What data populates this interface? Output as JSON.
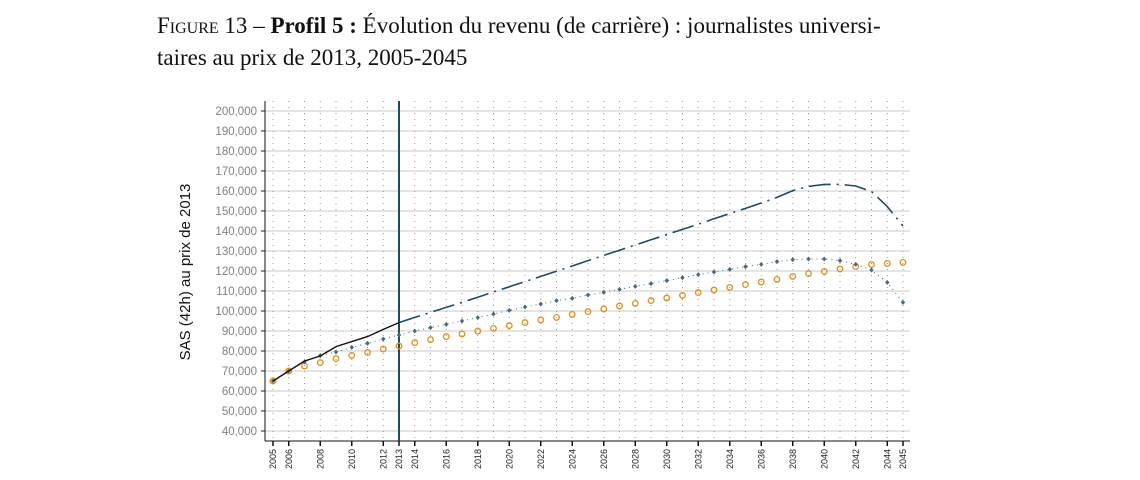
{
  "caption": {
    "figure_label": "Figure 13",
    "dash": " – ",
    "bold": "Profil 5 :",
    "text": " Évolution du revenu (de carrière) : journalistes universi-",
    "line2": "taires au prix de 2013, 2005-2045"
  },
  "chart_data": {
    "type": "line",
    "title": "",
    "xlabel": "",
    "ylabel": "SAS (42h) au prix de 2013",
    "xlim": [
      2005,
      2045
    ],
    "ylim": [
      35000,
      205000
    ],
    "yticks": [
      40000,
      50000,
      60000,
      70000,
      80000,
      90000,
      100000,
      110000,
      120000,
      130000,
      140000,
      150000,
      160000,
      170000,
      180000,
      190000,
      200000
    ],
    "ytick_labels": [
      "40,000",
      "50,000",
      "60,000",
      "70,000",
      "80,000",
      "90,000",
      "100,000",
      "110,000",
      "120,000",
      "130,000",
      "140,000",
      "150,000",
      "160,000",
      "170,000",
      "180,000",
      "190,000",
      "200,000"
    ],
    "xticks": [
      2005,
      2006,
      2008,
      2010,
      2012,
      2013,
      2014,
      2016,
      2018,
      2020,
      2022,
      2024,
      2026,
      2028,
      2030,
      2032,
      2034,
      2036,
      2038,
      2040,
      2042,
      2044,
      2045
    ],
    "grid": {
      "horizontal": "solid",
      "vertical": "dotted, every year"
    },
    "vertical_marker": 2013,
    "legend": "none",
    "series": [
      {
        "style": "solid line",
        "color": "#111111",
        "x": [
          2005,
          2006,
          2007,
          2008,
          2009,
          2010,
          2011,
          2012,
          2013
        ],
        "y": [
          65000,
          70000,
          75000,
          77500,
          82200,
          84700,
          87200,
          90800,
          94200
        ]
      },
      {
        "style": "long-dash-dot line",
        "color": "#1f4a63",
        "x": [
          2013,
          2014,
          2015,
          2016,
          2017,
          2018,
          2019,
          2020,
          2021,
          2022,
          2023,
          2024,
          2025,
          2026,
          2027,
          2028,
          2029,
          2030,
          2031,
          2032,
          2033,
          2034,
          2035,
          2036,
          2037,
          2038,
          2039,
          2040,
          2041,
          2042,
          2043,
          2044,
          2045
        ],
        "y": [
          94200,
          96800,
          99300,
          101800,
          104300,
          106900,
          109500,
          112100,
          114700,
          117300,
          119900,
          122500,
          125200,
          127800,
          130400,
          133000,
          135600,
          138200,
          140800,
          143400,
          146100,
          148700,
          151300,
          154000,
          156800,
          160200,
          162300,
          163300,
          163300,
          162500,
          159700,
          152200,
          142500
        ]
      },
      {
        "style": "dotted line with diamond markers",
        "color": "#4a6a7f",
        "x": [
          2005,
          2006,
          2007,
          2008,
          2009,
          2010,
          2011,
          2012,
          2013,
          2014,
          2015,
          2016,
          2017,
          2018,
          2019,
          2020,
          2021,
          2022,
          2023,
          2024,
          2025,
          2026,
          2027,
          2028,
          2029,
          2030,
          2031,
          2032,
          2033,
          2034,
          2035,
          2036,
          2037,
          2038,
          2039,
          2040,
          2041,
          2042,
          2043,
          2044,
          2045
        ],
        "y": [
          65000,
          70000,
          74500,
          77700,
          79500,
          81800,
          83800,
          86000,
          88000,
          90000,
          91700,
          93300,
          95000,
          96700,
          98500,
          100300,
          102000,
          103500,
          105200,
          106300,
          108000,
          109300,
          110800,
          112300,
          113700,
          115200,
          116700,
          118200,
          119500,
          120800,
          122200,
          123300,
          124700,
          125700,
          126000,
          126000,
          125200,
          123300,
          120500,
          114300,
          104300
        ]
      },
      {
        "style": "hollow circle markers",
        "color": "#e0901c",
        "x": [
          2005,
          2006,
          2007,
          2008,
          2009,
          2010,
          2011,
          2012,
          2013,
          2014,
          2015,
          2016,
          2017,
          2018,
          2019,
          2020,
          2021,
          2022,
          2023,
          2024,
          2025,
          2026,
          2027,
          2028,
          2029,
          2030,
          2031,
          2032,
          2033,
          2034,
          2035,
          2036,
          2037,
          2038,
          2039,
          2040,
          2041,
          2042,
          2043,
          2044,
          2045
        ],
        "y": [
          65000,
          70000,
          72500,
          74200,
          76200,
          77800,
          79300,
          81000,
          82500,
          84200,
          85700,
          87200,
          88500,
          90000,
          91300,
          92700,
          94200,
          95500,
          96800,
          98300,
          99700,
          101000,
          102500,
          103800,
          105200,
          106500,
          107800,
          109200,
          110500,
          111800,
          113200,
          114500,
          115800,
          117300,
          118700,
          119800,
          121000,
          122200,
          123200,
          123800,
          124300
        ]
      }
    ]
  }
}
